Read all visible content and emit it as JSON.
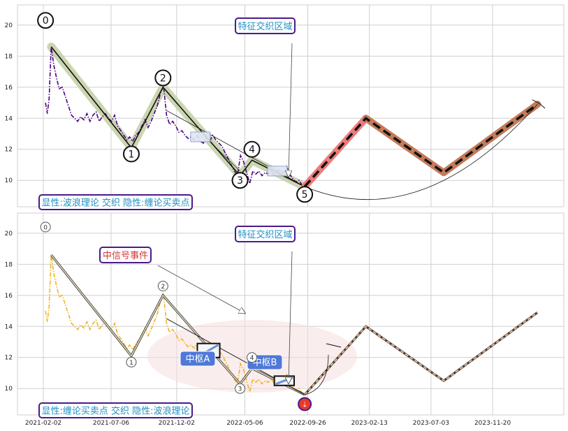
{
  "chart_data": [
    {
      "type": "line",
      "panel": "top",
      "ylim": [
        8.3,
        21.3
      ],
      "yticks": [
        "10",
        "12",
        "14",
        "16",
        "18",
        "20"
      ],
      "grid": true,
      "price_color": "#4B0082",
      "price_series": [
        [
          "2021-02-07",
          15.0
        ],
        [
          "2021-02-11",
          14.3
        ],
        [
          "2021-02-15",
          15.2
        ],
        [
          "2021-02-20",
          18.6
        ],
        [
          "2021-02-26",
          17.4
        ],
        [
          "2021-03-04",
          16.6
        ],
        [
          "2021-03-10",
          15.9
        ],
        [
          "2021-03-17",
          16.0
        ],
        [
          "2021-03-24",
          15.4
        ],
        [
          "2021-03-31",
          14.8
        ],
        [
          "2021-04-07",
          14.2
        ],
        [
          "2021-04-14",
          14.0
        ],
        [
          "2021-04-21",
          13.8
        ],
        [
          "2021-04-28",
          14.1
        ],
        [
          "2021-05-05",
          13.9
        ],
        [
          "2021-05-12",
          14.3
        ],
        [
          "2021-05-19",
          13.8
        ],
        [
          "2021-05-26",
          14.2
        ],
        [
          "2021-06-02",
          14.4
        ],
        [
          "2021-06-09",
          13.8
        ],
        [
          "2021-06-16",
          14.1
        ],
        [
          "2021-06-23",
          14.3
        ],
        [
          "2021-06-30",
          14.0
        ],
        [
          "2021-07-07",
          13.8
        ],
        [
          "2021-07-14",
          14.2
        ],
        [
          "2021-07-21",
          13.5
        ],
        [
          "2021-07-28",
          13.2
        ],
        [
          "2021-08-04",
          12.9
        ],
        [
          "2021-08-11",
          12.6
        ],
        [
          "2021-08-17",
          12.8
        ],
        [
          "2021-08-24",
          12.5
        ],
        [
          "2021-08-31",
          12.9
        ],
        [
          "2021-09-07",
          13.1
        ],
        [
          "2021-09-14",
          13.5
        ],
        [
          "2021-09-21",
          13.9
        ],
        [
          "2021-09-28",
          13.4
        ],
        [
          "2021-10-05",
          13.8
        ],
        [
          "2021-10-12",
          14.3
        ],
        [
          "2021-10-19",
          14.8
        ],
        [
          "2021-10-26",
          15.6
        ],
        [
          "2021-11-02",
          16.1
        ],
        [
          "2021-11-09",
          14.2
        ],
        [
          "2021-11-16",
          13.6
        ],
        [
          "2021-11-23",
          13.8
        ],
        [
          "2021-11-30",
          13.5
        ],
        [
          "2021-12-07",
          13.1
        ],
        [
          "2021-12-14",
          13.2
        ],
        [
          "2021-12-21",
          12.9
        ],
        [
          "2021-12-28",
          12.7
        ],
        [
          "2022-01-04",
          12.8
        ],
        [
          "2022-01-11",
          12.6
        ],
        [
          "2022-01-18",
          12.9
        ],
        [
          "2022-01-25",
          12.5
        ],
        [
          "2022-02-01",
          12.4
        ],
        [
          "2022-02-08",
          12.8
        ],
        [
          "2022-02-15",
          12.5
        ],
        [
          "2022-02-22",
          12.9
        ],
        [
          "2022-03-01",
          12.6
        ],
        [
          "2022-03-08",
          12.4
        ],
        [
          "2022-03-15",
          12.2
        ],
        [
          "2022-03-22",
          11.8
        ],
        [
          "2022-03-29",
          11.4
        ],
        [
          "2022-04-05",
          11.0
        ],
        [
          "2022-04-12",
          10.6
        ],
        [
          "2022-04-19",
          10.3
        ],
        [
          "2022-04-26",
          11.6
        ],
        [
          "2022-05-03",
          11.2
        ],
        [
          "2022-05-10",
          10.5
        ],
        [
          "2022-05-17",
          9.8
        ],
        [
          "2022-05-24",
          10.6
        ],
        [
          "2022-05-31",
          10.4
        ],
        [
          "2022-06-07",
          10.6
        ],
        [
          "2022-06-14",
          10.3
        ],
        [
          "2022-06-21",
          10.5
        ],
        [
          "2022-06-28",
          10.4
        ],
        [
          "2022-07-05",
          10.6
        ],
        [
          "2022-07-12",
          10.3
        ],
        [
          "2022-07-19",
          10.6
        ],
        [
          "2022-07-26",
          10.7
        ],
        [
          "2022-08-02",
          10.5
        ],
        [
          "2022-08-09",
          10.9
        ],
        [
          "2022-08-16",
          10.4
        ],
        [
          "2022-08-23",
          10.1
        ],
        [
          "2022-08-30",
          9.9
        ],
        [
          "2022-09-06",
          10.0
        ],
        [
          "2022-09-13",
          9.7
        ],
        [
          "2022-09-19",
          9.6
        ]
      ],
      "wave_points": [
        [
          "2021-02-20",
          18.6
        ],
        [
          "2021-08-21",
          12.1
        ],
        [
          "2021-11-01",
          16.0
        ],
        [
          "2022-04-25",
          10.3
        ],
        [
          "2022-05-22",
          11.3
        ],
        [
          "2022-09-19",
          9.6
        ]
      ],
      "wave_labels": [
        "0",
        "1",
        "2",
        "3",
        "4",
        "5"
      ],
      "zigzag_pred": [
        [
          "2022-09-19",
          9.6
        ],
        [
          "2023-02-05",
          14.0
        ],
        [
          "2023-08-01",
          10.5
        ],
        [
          "2024-03-01",
          14.9
        ]
      ],
      "bold_segments": [
        {
          "from": [
            "2022-09-19",
            9.6
          ],
          "to": [
            "2023-02-05",
            14.0
          ],
          "color": "#ee7b7b"
        },
        {
          "from": [
            "2023-02-05",
            14.0
          ],
          "to": [
            "2023-08-01",
            10.5
          ],
          "color": "#c47b5a"
        },
        {
          "from": [
            "2023-08-01",
            10.5
          ],
          "to": [
            "2024-03-01",
            14.9
          ],
          "color": "#c47b5a"
        }
      ],
      "callout": "特征交织区域",
      "legend_label": "显性:波浪理论 交织 隐性:缠论买卖点",
      "accent_color": "#1f8fc4",
      "frame_color": "#4b1a8a"
    },
    {
      "type": "line",
      "panel": "bottom",
      "ylim": [
        8.3,
        21.3
      ],
      "yticks": [
        "10",
        "12",
        "14",
        "16",
        "18",
        "20"
      ],
      "xticks": [
        "2021-02-02",
        "2021-07-06",
        "2021-12-02",
        "2022-05-06",
        "2022-09-26",
        "2023-02-13",
        "2023-07-03",
        "2023-11-20"
      ],
      "grid": true,
      "price_color": "#f0b429",
      "wave_labels": [
        "0",
        "1",
        "2",
        "3",
        "4",
        "⇣"
      ],
      "pivots": [
        {
          "label": "中枢A",
          "range": [
            "2022-01-18",
            "2022-03-10"
          ],
          "y": [
            12.0,
            12.9
          ]
        },
        {
          "label": "中枢B",
          "range": [
            "2022-07-12",
            "2022-08-26"
          ],
          "y": [
            10.2,
            10.8
          ]
        }
      ],
      "signal_label": "中信号事件",
      "signal_color": "#d33a3a",
      "callout": "特征交织区域",
      "legend_label": "显性:缠论买卖点 交织 隐性:波浪理论",
      "marker_color": "#e8392b"
    }
  ]
}
